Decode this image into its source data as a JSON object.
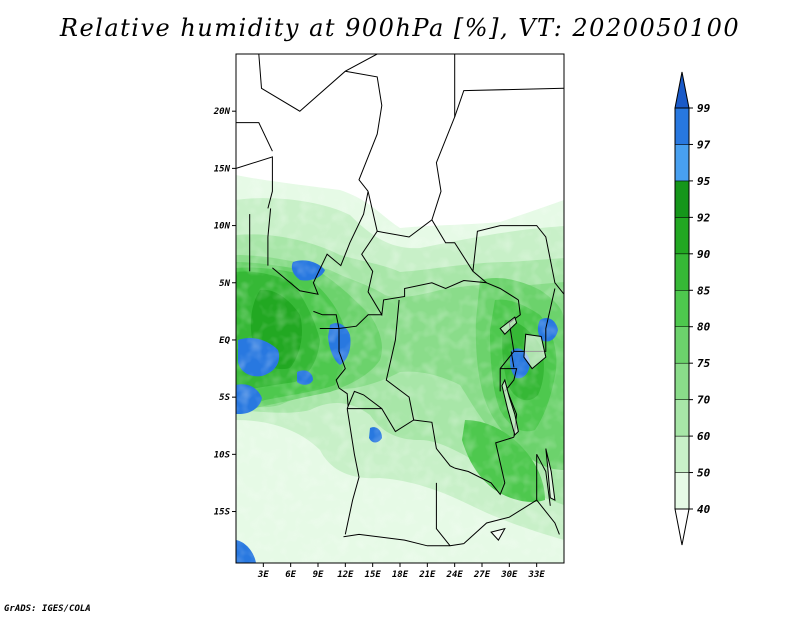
{
  "title": "Relative humidity at 900hPa [%], VT: 2020050100",
  "footer": "GrADS: IGES/COLA",
  "map": {
    "lon_range": [
      0,
      36
    ],
    "lat_range": [
      -19.5,
      25
    ],
    "lon_ticks": [
      "3E",
      "6E",
      "9E",
      "12E",
      "15E",
      "18E",
      "21E",
      "24E",
      "27E",
      "30E",
      "33E"
    ],
    "lat_ticks": [
      "20N",
      "15N",
      "10N",
      "5N",
      "EQ",
      "5S",
      "10S",
      "15S"
    ]
  },
  "colorbar": {
    "levels": [
      "40",
      "50",
      "60",
      "70",
      "75",
      "80",
      "85",
      "90",
      "92",
      "95",
      "97",
      "99"
    ],
    "colors": [
      "#ffffff",
      "#e6fae6",
      "#c8f0c8",
      "#a8e6a8",
      "#8adc8a",
      "#6cd26c",
      "#4ec84e",
      "#36b836",
      "#22a822",
      "#15961a",
      "#48a0f0",
      "#2878e0",
      "#1a5ac8"
    ]
  }
}
